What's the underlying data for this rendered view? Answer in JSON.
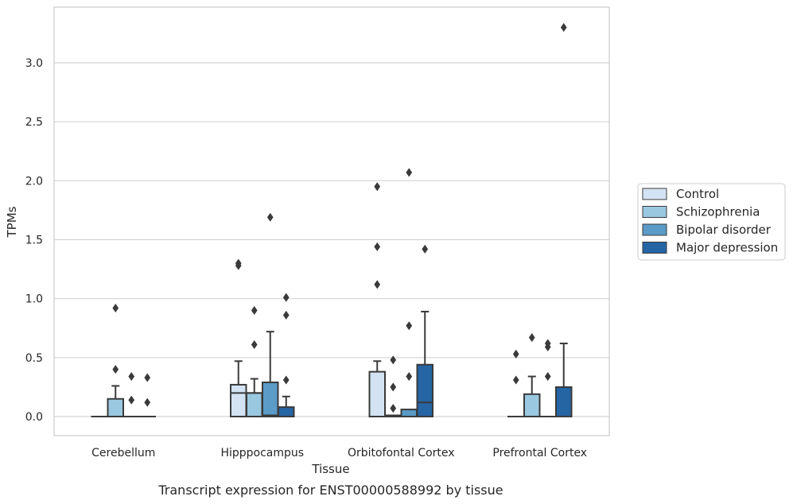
{
  "caption": "Transcript expression for ENST00000588992 by tissue",
  "chart_data": {
    "type": "box",
    "xlabel": "Tissue",
    "ylabel": "TPMs",
    "ylim": [
      -0.16,
      3.5
    ],
    "yticks": [
      0.0,
      0.5,
      1.0,
      1.5,
      2.0,
      2.5,
      3.0
    ],
    "ytick_labels": [
      "0.0",
      "0.5",
      "1.0",
      "1.5",
      "2.0",
      "2.5",
      "3.0"
    ],
    "categories": [
      "Cerebellum",
      "Hipppocampus",
      "Orbitofontal Cortex",
      "Prefrontal Cortex"
    ],
    "grid": "horizontal",
    "legend_position": "right",
    "series": [
      {
        "name": "Control",
        "color": "#d3e3f3",
        "boxes": [
          {
            "q1": 0.0,
            "median": 0.0,
            "q3": 0.0,
            "whisker_low": 0.0,
            "whisker_high": 0.0,
            "outliers": []
          },
          {
            "q1": 0.0,
            "median": 0.2,
            "q3": 0.27,
            "whisker_low": 0.0,
            "whisker_high": 0.47,
            "outliers": [
              1.28,
              1.3
            ]
          },
          {
            "q1": 0.0,
            "median": 0.0,
            "q3": 0.38,
            "whisker_low": 0.0,
            "whisker_high": 0.47,
            "outliers": [
              1.12,
              1.44,
              1.95
            ]
          },
          {
            "q1": 0.0,
            "median": 0.0,
            "q3": 0.0,
            "whisker_low": 0.0,
            "whisker_high": 0.0,
            "outliers": [
              0.31,
              0.53
            ]
          }
        ]
      },
      {
        "name": "Schizophrenia",
        "color": "#9ac8e0",
        "boxes": [
          {
            "q1": 0.0,
            "median": 0.0,
            "q3": 0.15,
            "whisker_low": 0.0,
            "whisker_high": 0.26,
            "outliers": [
              0.4,
              0.92
            ]
          },
          {
            "q1": 0.0,
            "median": 0.2,
            "q3": 0.2,
            "whisker_low": 0.0,
            "whisker_high": 0.32,
            "outliers": [
              0.61,
              0.9
            ]
          },
          {
            "q1": 0.0,
            "median": 0.01,
            "q3": 0.01,
            "whisker_low": 0.0,
            "whisker_high": 0.01,
            "outliers": [
              0.07,
              0.25,
              0.48
            ]
          },
          {
            "q1": 0.0,
            "median": 0.0,
            "q3": 0.19,
            "whisker_low": 0.0,
            "whisker_high": 0.34,
            "outliers": [
              0.67
            ]
          }
        ]
      },
      {
        "name": "Bipolar disorder",
        "color": "#5a9bc7",
        "boxes": [
          {
            "q1": 0.0,
            "median": 0.0,
            "q3": 0.0,
            "whisker_low": 0.0,
            "whisker_high": 0.0,
            "outliers": [
              0.14,
              0.34
            ]
          },
          {
            "q1": 0.0,
            "median": 0.01,
            "q3": 0.29,
            "whisker_low": 0.0,
            "whisker_high": 0.72,
            "outliers": [
              1.69
            ]
          },
          {
            "q1": 0.0,
            "median": 0.0,
            "q3": 0.06,
            "whisker_low": 0.0,
            "whisker_high": 0.06,
            "outliers": [
              0.34,
              0.77,
              2.07
            ]
          },
          {
            "q1": 0.0,
            "median": 0.0,
            "q3": 0.0,
            "whisker_low": 0.0,
            "whisker_high": 0.0,
            "outliers": [
              0.34,
              0.59,
              0.62
            ]
          }
        ]
      },
      {
        "name": "Major depression",
        "color": "#2565a4",
        "boxes": [
          {
            "q1": 0.0,
            "median": 0.0,
            "q3": 0.0,
            "whisker_low": 0.0,
            "whisker_high": 0.0,
            "outliers": [
              0.12,
              0.33
            ]
          },
          {
            "q1": 0.0,
            "median": 0.0,
            "q3": 0.08,
            "whisker_low": 0.0,
            "whisker_high": 0.17,
            "outliers": [
              0.31,
              0.86,
              1.01
            ]
          },
          {
            "q1": 0.0,
            "median": 0.12,
            "q3": 0.44,
            "whisker_low": 0.0,
            "whisker_high": 0.89,
            "outliers": [
              1.42
            ]
          },
          {
            "q1": 0.0,
            "median": 0.0,
            "q3": 0.25,
            "whisker_low": 0.0,
            "whisker_high": 0.62,
            "outliers": [
              3.3
            ]
          }
        ]
      }
    ]
  }
}
